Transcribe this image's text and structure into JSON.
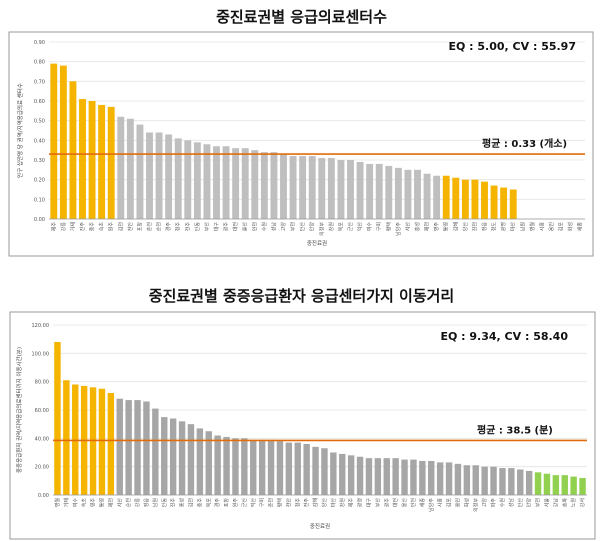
{
  "chart_data": [
    {
      "type": "bar",
      "title": "중진료권별  응급의료센터수",
      "ylabel": "인구 십만명 당 권역/지역응급의료 센터수",
      "xlabel": "중진료권",
      "annotation": "EQ : 5.00, CV : 55.97",
      "reference": {
        "label": "평균 : 0.33 (개소)",
        "value": 0.33,
        "color": "#E36C0A"
      },
      "ylim": [
        0,
        0.9
      ],
      "yticks": [
        "0.00",
        "0.10",
        "0.20",
        "0.30",
        "0.40",
        "0.50",
        "0.60",
        "0.70",
        "0.80",
        "0.90"
      ],
      "grid": true,
      "colors": {
        "high": "#F4B400",
        "mid": "#BFBFBF",
        "low": "#F4B400"
      },
      "categories": [
        "제주",
        "강릉",
        "거제",
        "진주",
        "충주",
        "속초",
        "원주",
        "김천",
        "천안",
        "포항",
        "춘천",
        "순천",
        "경주",
        "청주",
        "전주",
        "안동",
        "부산",
        "대구",
        "광주",
        "대전",
        "울산",
        "인천",
        "수원",
        "성남",
        "고양",
        "부천",
        "안산",
        "안양",
        "의정부",
        "창원",
        "목포",
        "군산",
        "익산",
        "여수",
        "구미",
        "평택",
        "남양주",
        "서산",
        "홍성",
        "제천",
        "영주",
        "통영",
        "김해",
        "양산",
        "진천",
        "정읍",
        "청도",
        "광명",
        "마산",
        "남원",
        "영월",
        "시흥",
        "용인",
        "김포",
        "화성",
        "세종"
      ],
      "values": [
        0.79,
        0.78,
        0.7,
        0.61,
        0.6,
        0.58,
        0.57,
        0.52,
        0.51,
        0.48,
        0.44,
        0.44,
        0.43,
        0.41,
        0.4,
        0.39,
        0.38,
        0.37,
        0.37,
        0.36,
        0.36,
        0.35,
        0.34,
        0.34,
        0.33,
        0.32,
        0.32,
        0.32,
        0.31,
        0.31,
        0.3,
        0.3,
        0.29,
        0.28,
        0.28,
        0.27,
        0.26,
        0.25,
        0.25,
        0.23,
        0.22,
        0.22,
        0.21,
        0.2,
        0.2,
        0.19,
        0.17,
        0.16,
        0.15,
        0,
        0,
        0,
        0,
        0,
        0,
        0
      ],
      "highlight_high": 7,
      "highlight_low_start": 41,
      "highlight_low_end": 49
    },
    {
      "type": "bar",
      "title": "중진료권별  중증응급환자  응급센터가지  이동거리",
      "ylabel": "중증응급환자 권역/지역응급의료센터까지 이동시간(분)",
      "xlabel": "중진료권",
      "annotation": "EQ : 9.34, CV : 58.40",
      "reference": {
        "label": "평균 : 38.5 (분)",
        "value": 38.5,
        "color": "#E36C0A"
      },
      "ylim": [
        0,
        120
      ],
      "yticks": [
        "0.00",
        "20.00",
        "40.00",
        "60.00",
        "80.00",
        "100.00",
        "120.00"
      ],
      "grid": true,
      "colors": {
        "high": "#F4B400",
        "mid": "#A6A6A6",
        "low": "#92D050"
      },
      "categories": [
        "영월",
        "거제",
        "여수",
        "속초",
        "영주",
        "통영",
        "제천",
        "서산",
        "순천",
        "강릉",
        "정읍",
        "남원",
        "안동",
        "진주",
        "홍성",
        "김천",
        "충주",
        "목포",
        "경주",
        "포항",
        "원주",
        "군산",
        "익산",
        "구미",
        "춘천",
        "평택",
        "천안",
        "청주",
        "전주",
        "김해",
        "양산",
        "마산",
        "창원",
        "제주",
        "광명",
        "대구",
        "부산",
        "광주",
        "대전",
        "울산",
        "인천",
        "세종",
        "남양주",
        "시흥",
        "김포",
        "용인",
        "화성",
        "의정부",
        "고양",
        "파주",
        "수원",
        "성남",
        "안산",
        "안양",
        "부천",
        "서울",
        "강남",
        "송파",
        "노원",
        "강서"
      ],
      "values": [
        108,
        81,
        78,
        77,
        76,
        75,
        72,
        68,
        67,
        67,
        66,
        61,
        55,
        54,
        52,
        50,
        47,
        45,
        42,
        41,
        40,
        40,
        39,
        39,
        39,
        38,
        37,
        37,
        36,
        34,
        33,
        30,
        29,
        28,
        27,
        26,
        26,
        26,
        26,
        25,
        25,
        24,
        24,
        23,
        23,
        22,
        21,
        21,
        20,
        20,
        19,
        19,
        18,
        17,
        16,
        15,
        14,
        14,
        13,
        12
      ],
      "highlight_high": 7,
      "highlight_low_start": 54,
      "highlight_low_end": 60
    }
  ]
}
